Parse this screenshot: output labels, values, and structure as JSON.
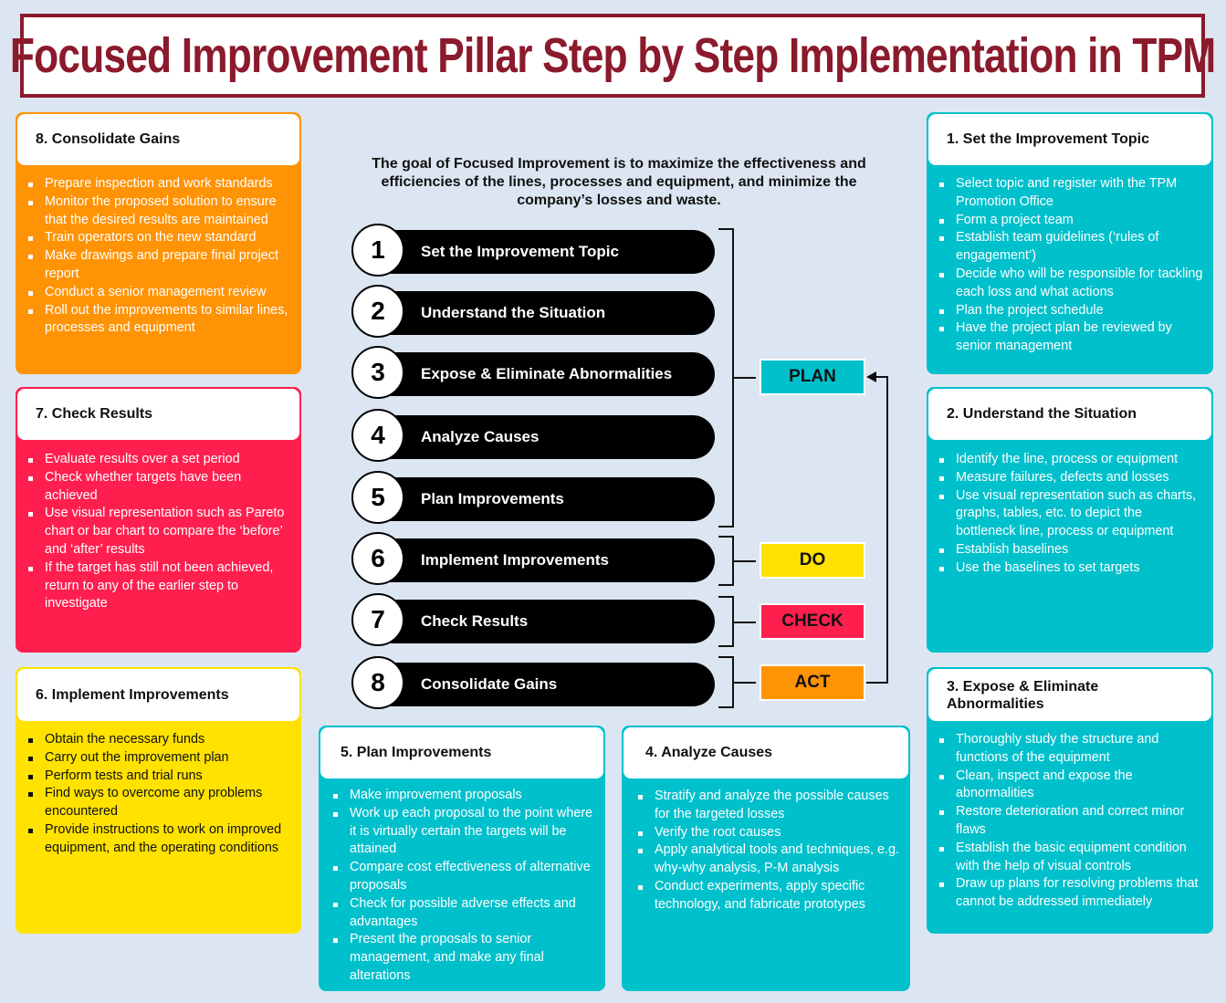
{
  "title": "Focused Improvement Pillar Step by Step Implementation in TPM",
  "goal": "The goal of Focused Improvement is to maximize the effectiveness and efficiencies of the lines, processes and equipment, and minimize the company’s losses and waste.",
  "steps": [
    {
      "num": "1",
      "label": "Set the Improvement Topic"
    },
    {
      "num": "2",
      "label": "Understand the Situation"
    },
    {
      "num": "3",
      "label": "Expose & Eliminate Abnormalities"
    },
    {
      "num": "4",
      "label": "Analyze Causes"
    },
    {
      "num": "5",
      "label": "Plan Improvements"
    },
    {
      "num": "6",
      "label": "Implement Improvements"
    },
    {
      "num": "7",
      "label": "Check Results"
    },
    {
      "num": "8",
      "label": "Consolidate Gains"
    }
  ],
  "phases": {
    "plan": {
      "label": "PLAN",
      "color": "#00c0cc",
      "text_color": "#111111"
    },
    "do": {
      "label": "DO",
      "color": "#ffe200",
      "text_color": "#111111"
    },
    "check": {
      "label": "CHECK",
      "color": "#ff1f4f",
      "text_color": "#111111"
    },
    "act": {
      "label": "ACT",
      "color": "#ff9306",
      "text_color": "#111111"
    }
  },
  "cards": {
    "c1": {
      "title": "1. Set the Improvement Topic",
      "items": [
        "Select topic and register with the TPM Promotion Office",
        "Form a project team",
        "Establish team guidelines (‘rules of engagement’)",
        "Decide who will be responsible for tackling each loss and what actions",
        "Plan the project schedule",
        "Have the project plan be reviewed by senior management"
      ]
    },
    "c2": {
      "title": "2. Understand the Situation",
      "items": [
        "Identify the line, process or equipment",
        "Measure failures, defects and losses",
        "Use visual representation such as charts, graphs, tables, etc. to depict the bottleneck line, process or equipment",
        "Establish baselines",
        "Use the baselines to set targets"
      ]
    },
    "c3": {
      "title": "3. Expose & Eliminate Abnormalities",
      "items": [
        "Thoroughly study the structure and functions of the equipment",
        "Clean, inspect and expose the abnormalities",
        "Restore deterioration and correct minor flaws",
        "Establish the basic equipment condition with the help of visual controls",
        "Draw up plans for resolving problems that cannot be addressed immediately"
      ]
    },
    "c4": {
      "title": "4. Analyze Causes",
      "items": [
        "Stratify and analyze the possible causes for the targeted losses",
        "Verify the root causes",
        "Apply analytical tools and techniques, e.g. why-why analysis, P-M analysis",
        "Conduct experiments, apply specific technology, and fabricate prototypes"
      ]
    },
    "c5": {
      "title": "5. Plan Improvements",
      "items": [
        "Make improvement proposals",
        "Work up each proposal to the point where it is virtually certain the targets will be attained",
        "Compare cost effectiveness of alternative proposals",
        "Check for possible adverse effects and advantages",
        "Present the proposals to senior management, and make any final alterations"
      ]
    },
    "c6": {
      "title": "6. Implement Improvements",
      "items": [
        "Obtain the necessary funds",
        "Carry out the improvement plan",
        "Perform tests and trial runs",
        "Find ways to overcome any problems encountered",
        "Provide instructions to work on improved equipment, and the operating conditions"
      ]
    },
    "c7": {
      "title": "7. Check Results",
      "items": [
        "Evaluate results over a set period",
        "Check whether targets have been achieved",
        "Use visual representation such as Pareto chart or bar chart to compare the ‘before’ and ‘after’ results",
        "If the target has still not been achieved, return to any of the earlier step to investigate"
      ]
    },
    "c8": {
      "title": "8. Consolidate Gains",
      "items": [
        "Prepare inspection and work standards",
        "Monitor the proposed solution to ensure that the desired results are maintained",
        "Train operators on the new standard",
        "Make drawings and prepare final project report",
        "Conduct a senior management review",
        "Roll out the improvements to similar lines, processes and equipment"
      ]
    }
  }
}
